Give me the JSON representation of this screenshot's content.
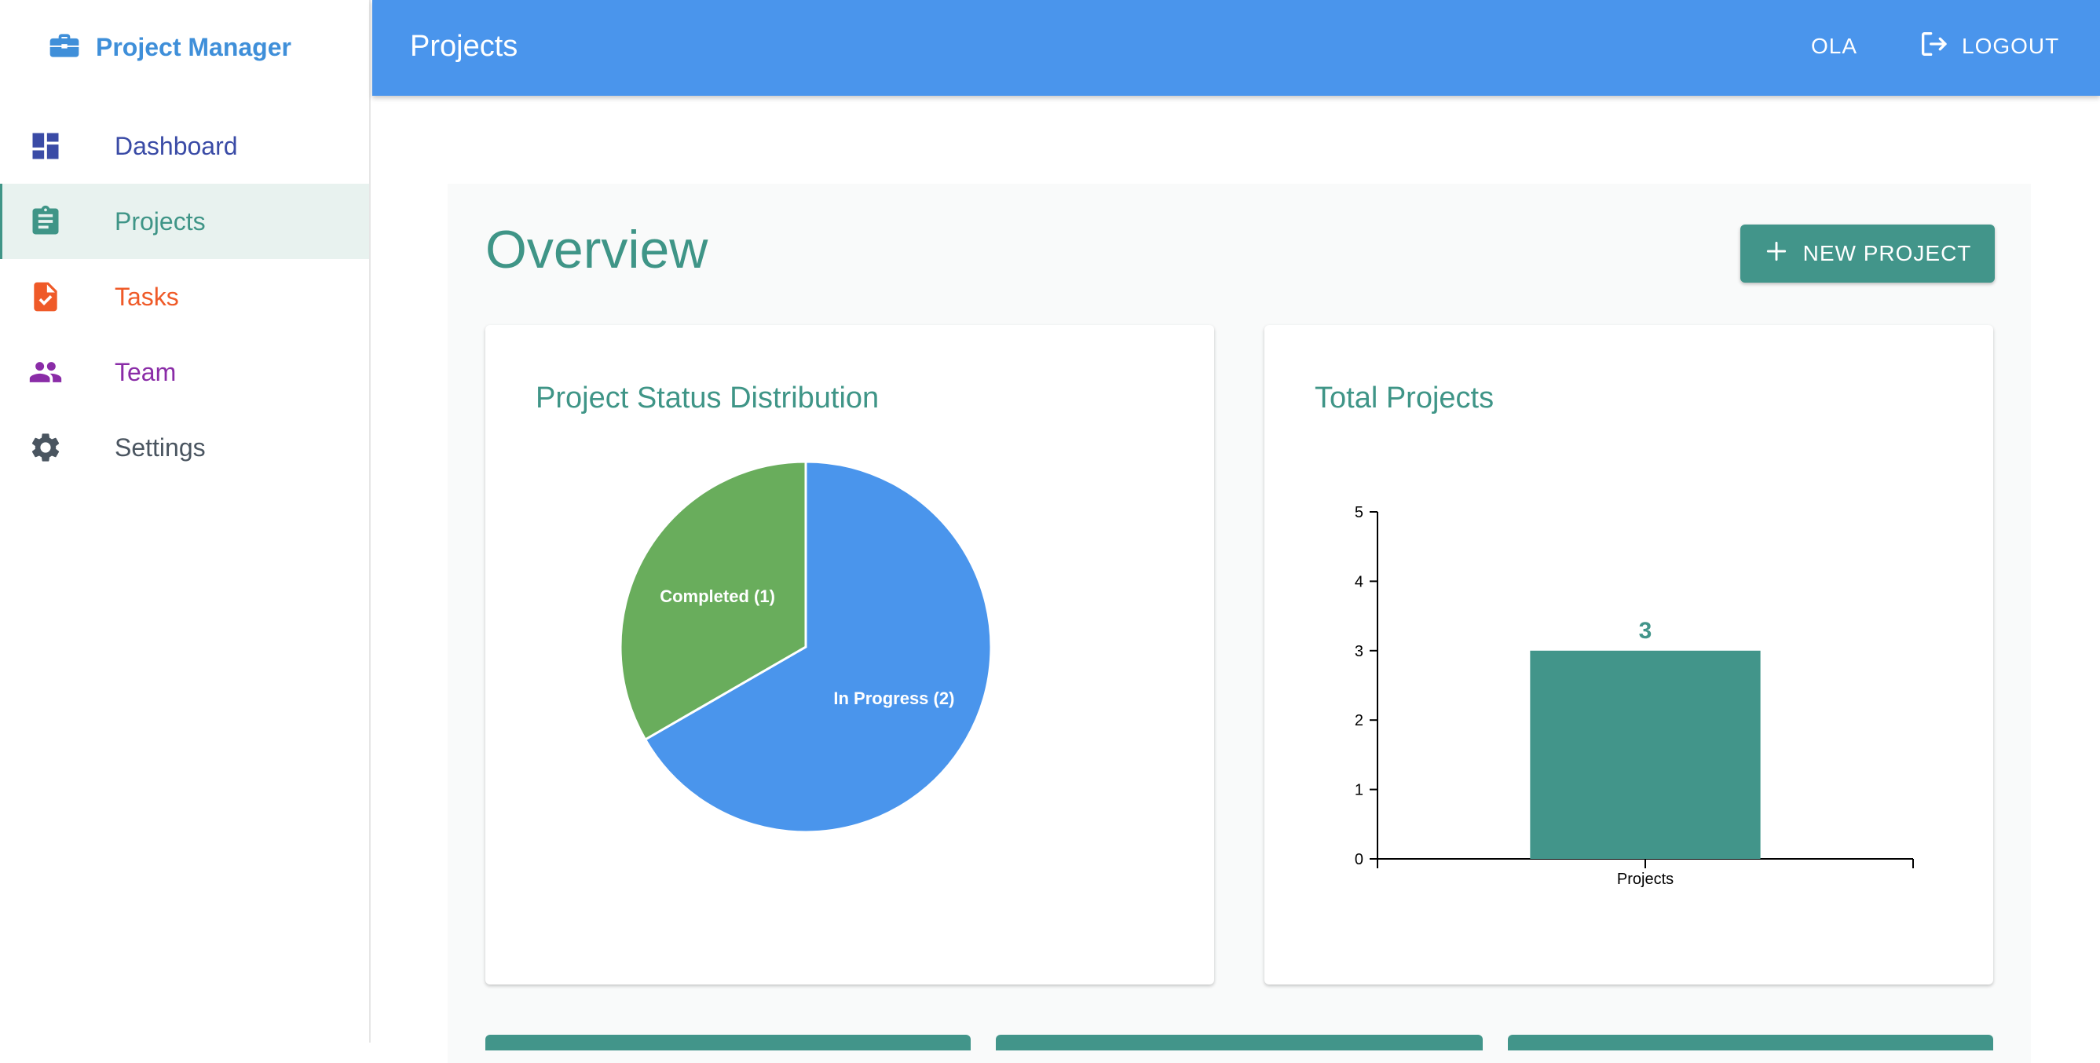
{
  "sidebar": {
    "brand": "Project Manager",
    "items": [
      {
        "label": "Dashboard",
        "icon": "dashboard-icon",
        "color": "#3a4ba6"
      },
      {
        "label": "Projects",
        "icon": "clipboard-icon",
        "color": "#3f9587"
      },
      {
        "label": "Tasks",
        "icon": "task-file-icon",
        "color": "#ef5a28"
      },
      {
        "label": "Team",
        "icon": "team-icon",
        "color": "#8a2ca7"
      },
      {
        "label": "Settings",
        "icon": "gear-icon",
        "color": "#4a5560"
      }
    ]
  },
  "header": {
    "title": "Projects",
    "user": "OLA",
    "logout_label": "LOGOUT"
  },
  "main": {
    "title": "Overview",
    "new_project_label": "NEW PROJECT"
  },
  "cards": {
    "status_title": "Project Status Distribution",
    "total_title": "Total Projects"
  },
  "chart_data": [
    {
      "type": "pie",
      "title": "Project Status Distribution",
      "slices": [
        {
          "label": "In Progress (2)",
          "value": 2,
          "color": "#4a95ec"
        },
        {
          "label": "Completed (1)",
          "value": 1,
          "color": "#69ad5c"
        }
      ]
    },
    {
      "type": "bar",
      "title": "Total Projects",
      "categories": [
        "Projects"
      ],
      "values": [
        3
      ],
      "value_labels": [
        "3"
      ],
      "ylim": [
        0,
        5
      ],
      "yticks": [
        0,
        1,
        2,
        3,
        4,
        5
      ],
      "color": "#42958a"
    }
  ]
}
